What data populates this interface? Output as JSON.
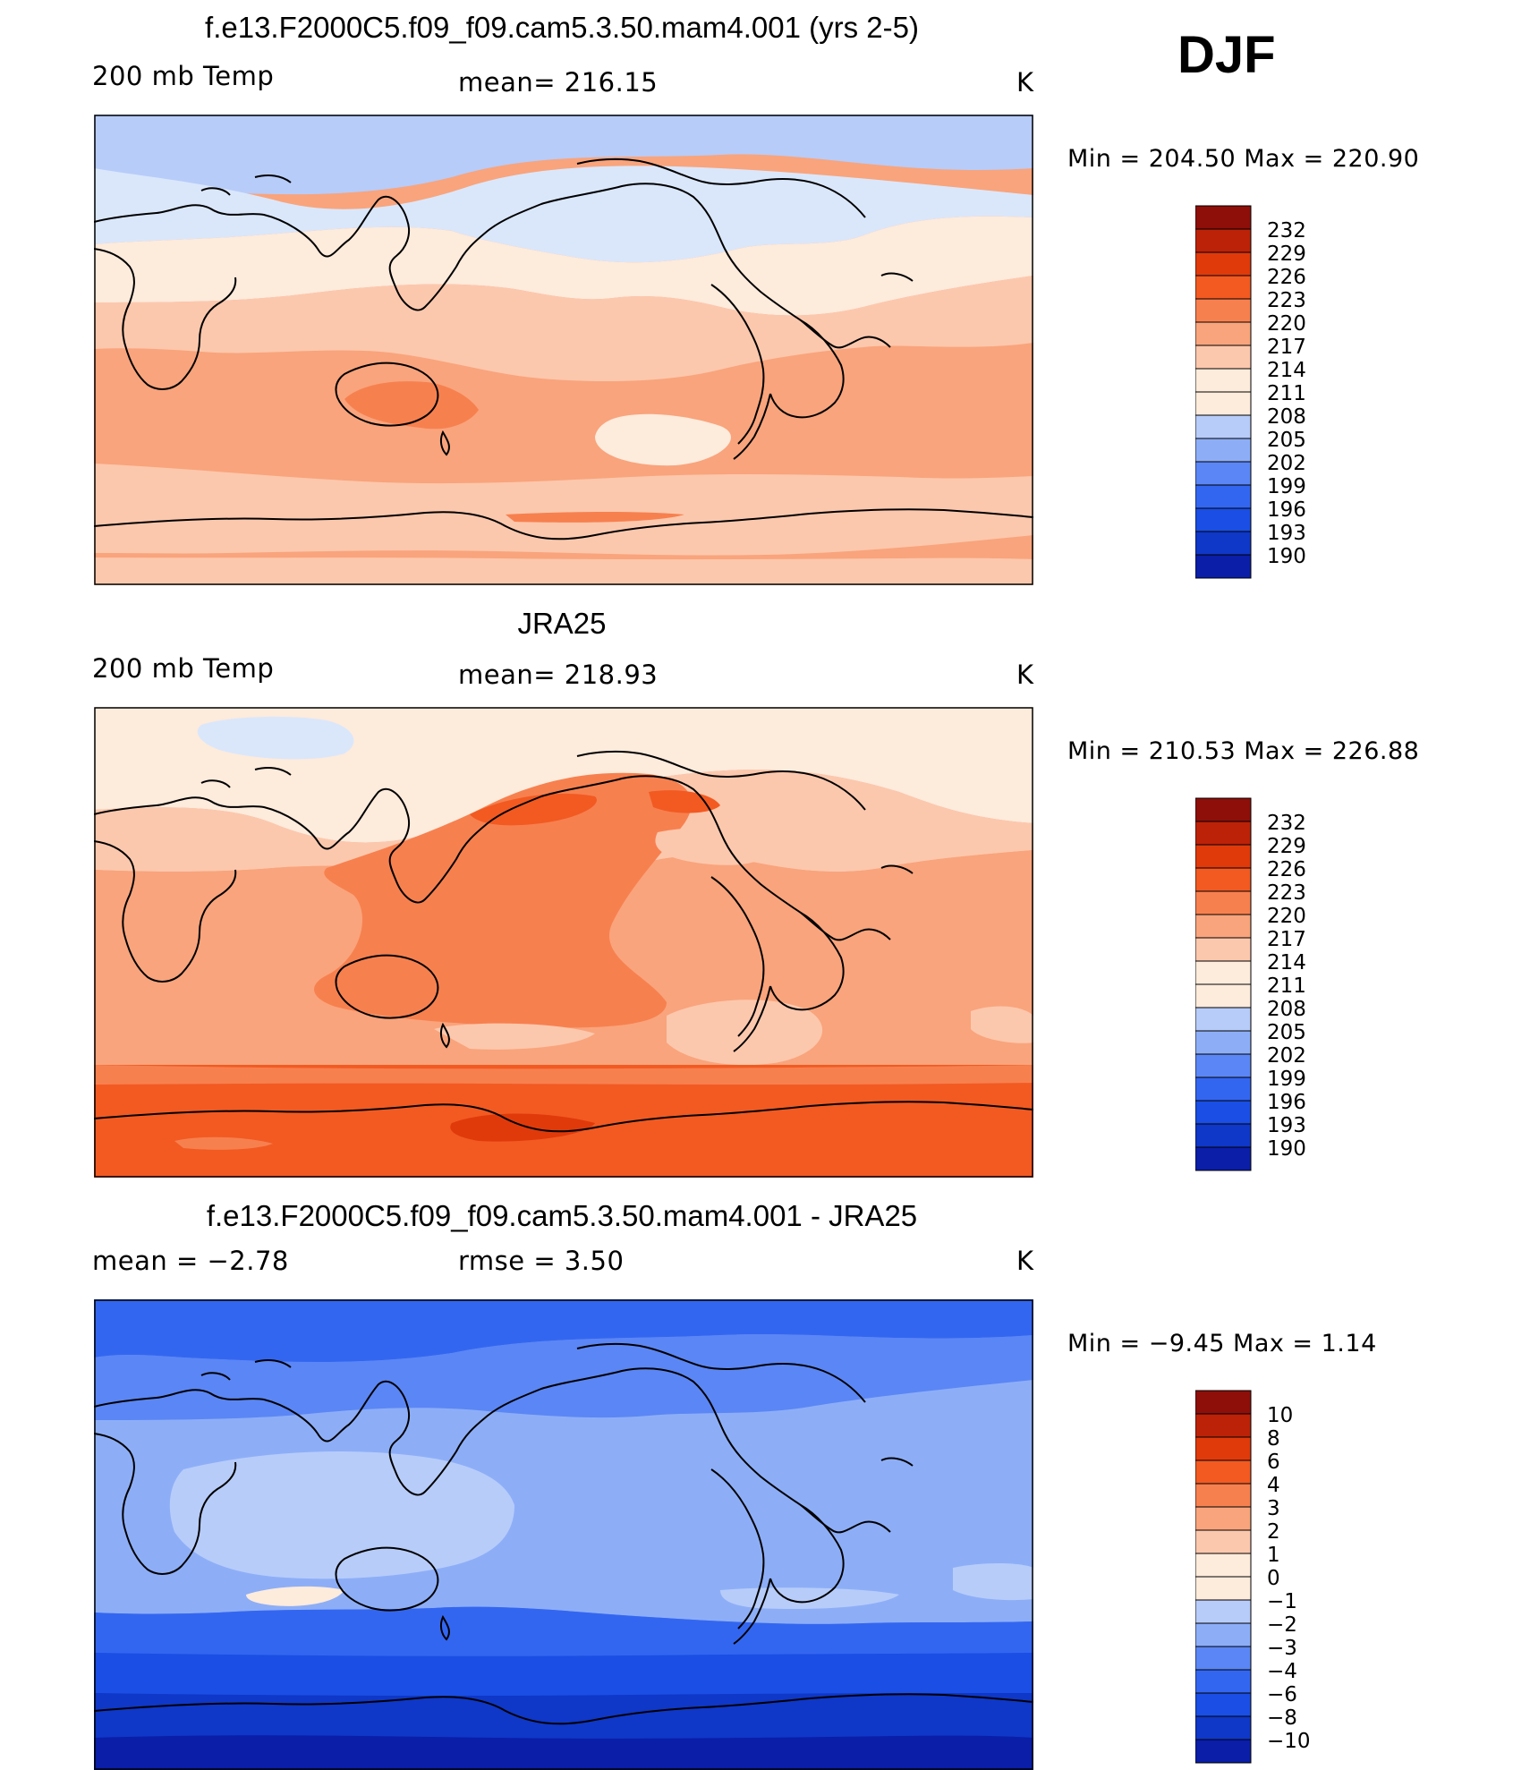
{
  "season": "DJF",
  "colors": {
    "coastline": "#000000",
    "palette": [
      "#08006e",
      "#0a1ea8",
      "#0f37c8",
      "#1a4ee4",
      "#3366f0",
      "#5b86f5",
      "#8daef7",
      "#b7ccf9",
      "#dae7fb",
      "#fdebdc",
      "#fcc8ad",
      "#f9a47c",
      "#f7804f",
      "#f25a22",
      "#e03a0b",
      "#bc2208",
      "#8e0f0a"
    ]
  },
  "panels": [
    {
      "title": "f.e13.F2000C5.f09_f09.cam5.3.50.mam4.001 (yrs 2-5)",
      "left_label": "200 mb Temp",
      "center_label": "mean= 216.15",
      "right_label": "K",
      "minmax": "Min  =  204.50  Max  =  220.90"
    },
    {
      "title": "JRA25",
      "left_label": "200 mb Temp",
      "center_label": "mean= 218.93",
      "right_label": "K",
      "minmax": "Min  =  210.53  Max  =  226.88"
    },
    {
      "title": "f.e13.F2000C5.f09_f09.cam5.3.50.mam4.001 - JRA25",
      "left_label": "mean  =     −2.78",
      "center_label": "rmse  =      3.50",
      "right_label": "K",
      "minmax": "Min  =    −9.45  Max  =     1.14"
    }
  ],
  "chart_data": [
    {
      "type": "heatmap",
      "title": "f.e13.F2000C5.f09_f09.cam5.3.50.mam4.001 (yrs 2-5)",
      "variable": "200 mb Temp",
      "units": "K",
      "mean": 216.15,
      "min": 204.5,
      "max": 220.9,
      "colorbar_levels": [
        232,
        229,
        226,
        223,
        220,
        217,
        214,
        211,
        208,
        205,
        202,
        199,
        196,
        193,
        190
      ]
    },
    {
      "type": "heatmap",
      "title": "JRA25",
      "variable": "200 mb Temp",
      "units": "K",
      "mean": 218.93,
      "min": 210.53,
      "max": 226.88,
      "colorbar_levels": [
        232,
        229,
        226,
        223,
        220,
        217,
        214,
        211,
        208,
        205,
        202,
        199,
        196,
        193,
        190
      ]
    },
    {
      "type": "heatmap",
      "title": "f.e13.F2000C5.f09_f09.cam5.3.50.mam4.001 - JRA25",
      "units": "K",
      "mean": -2.78,
      "rmse": 3.5,
      "min": -9.45,
      "max": 1.14,
      "colorbar_levels": [
        "10",
        "8",
        "6",
        "4",
        "3",
        "2",
        "1",
        "0",
        "−1",
        "−2",
        "−3",
        "−4",
        "−6",
        "−8",
        "−10"
      ]
    }
  ]
}
